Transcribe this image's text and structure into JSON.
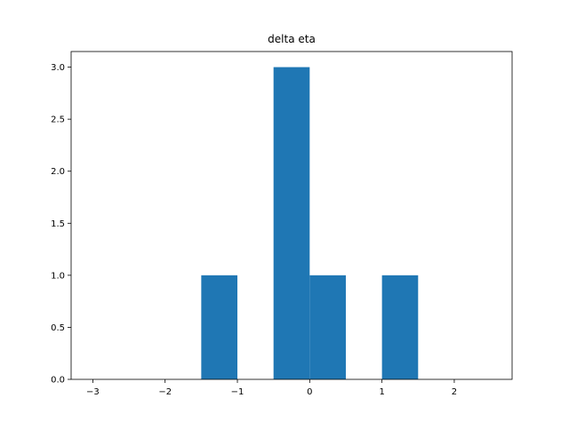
{
  "chart_data": {
    "type": "bar",
    "title": "delta eta",
    "xlabel": "",
    "ylabel": "",
    "xlim": [
      -3.3,
      2.8
    ],
    "ylim": [
      0,
      3.15
    ],
    "bar_color": "#1f77b4",
    "bins": [
      {
        "x0": -1.5,
        "x1": -1.0,
        "value": 1
      },
      {
        "x0": -0.5,
        "x1": 0.0,
        "value": 3
      },
      {
        "x0": 0.0,
        "x1": 0.5,
        "value": 1
      },
      {
        "x0": 1.0,
        "x1": 1.5,
        "value": 1
      }
    ],
    "x_ticks": [
      {
        "value": -3,
        "label": "−3"
      },
      {
        "value": -2,
        "label": "−2"
      },
      {
        "value": -1,
        "label": "−1"
      },
      {
        "value": 0,
        "label": "0"
      },
      {
        "value": 1,
        "label": "1"
      },
      {
        "value": 2,
        "label": "2"
      }
    ],
    "y_ticks": [
      {
        "value": 0.0,
        "label": "0.0"
      },
      {
        "value": 0.5,
        "label": "0.5"
      },
      {
        "value": 1.0,
        "label": "1.0"
      },
      {
        "value": 1.5,
        "label": "1.5"
      },
      {
        "value": 2.0,
        "label": "2.0"
      },
      {
        "value": 2.5,
        "label": "2.5"
      },
      {
        "value": 3.0,
        "label": "3.0"
      }
    ],
    "grid": false,
    "legend": "none"
  }
}
